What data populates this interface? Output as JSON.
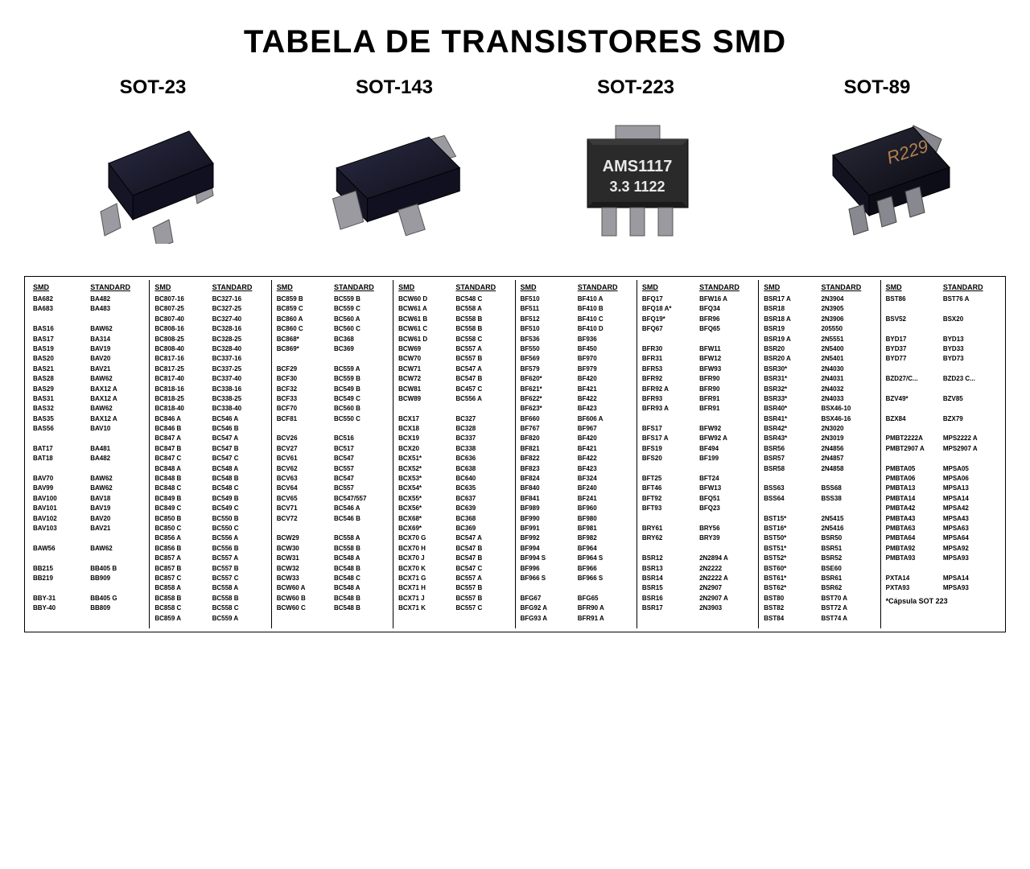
{
  "title": "TABELA DE TRANSISTORES SMD",
  "packages": [
    {
      "label": "SOT-23"
    },
    {
      "label": "SOT-143"
    },
    {
      "label": "SOT-223"
    },
    {
      "label": "SOT-89"
    }
  ],
  "table": {
    "header_left": "SMD",
    "header_right": "STANDARD",
    "columns": [
      [
        [
          "BA682",
          "BA482"
        ],
        [
          "BA683",
          "BA483"
        ],
        [
          "",
          ""
        ],
        [
          "BAS16",
          "BAW62"
        ],
        [
          "BAS17",
          "BA314"
        ],
        [
          "BAS19",
          "BAV19"
        ],
        [
          "BAS20",
          "BAV20"
        ],
        [
          "BAS21",
          "BAV21"
        ],
        [
          "BAS28",
          "BAW62"
        ],
        [
          "BAS29",
          "BAX12 A"
        ],
        [
          "BAS31",
          "BAX12 A"
        ],
        [
          "BAS32",
          "BAW62"
        ],
        [
          "BAS35",
          "BAX12 A"
        ],
        [
          "BAS56",
          "BAV10"
        ],
        [
          "",
          ""
        ],
        [
          "BAT17",
          "BA481"
        ],
        [
          "BAT18",
          "BA482"
        ],
        [
          "",
          ""
        ],
        [
          "BAV70",
          "BAW62"
        ],
        [
          "BAV99",
          "BAW62"
        ],
        [
          "BAV100",
          "BAV18"
        ],
        [
          "BAV101",
          "BAV19"
        ],
        [
          "BAV102",
          "BAV20"
        ],
        [
          "BAV103",
          "BAV21"
        ],
        [
          "",
          ""
        ],
        [
          "BAW56",
          "BAW62"
        ],
        [
          "",
          ""
        ],
        [
          "BB215",
          "BB405 B"
        ],
        [
          "BB219",
          "BB909"
        ],
        [
          "",
          ""
        ],
        [
          "BBY-31",
          "BB405 G"
        ],
        [
          "BBY-40",
          "BB809"
        ]
      ],
      [
        [
          "BC807-16",
          "BC327-16"
        ],
        [
          "BC807-25",
          "BC327-25"
        ],
        [
          "BC807-40",
          "BC327-40"
        ],
        [
          "BC808-16",
          "BC328-16"
        ],
        [
          "BC808-25",
          "BC328-25"
        ],
        [
          "BC808-40",
          "BC328-40"
        ],
        [
          "BC817-16",
          "BC337-16"
        ],
        [
          "BC817-25",
          "BC337-25"
        ],
        [
          "BC817-40",
          "BC337-40"
        ],
        [
          "BC818-16",
          "BC338-16"
        ],
        [
          "BC818-25",
          "BC338-25"
        ],
        [
          "BC818-40",
          "BC338-40"
        ],
        [
          "BC846 A",
          "BC546 A"
        ],
        [
          "BC846 B",
          "BC546 B"
        ],
        [
          "BC847 A",
          "BC547 A"
        ],
        [
          "BC847 B",
          "BC547 B"
        ],
        [
          "BC847 C",
          "BC547 C"
        ],
        [
          "BC848 A",
          "BC548 A"
        ],
        [
          "BC848 B",
          "BC548 B"
        ],
        [
          "BC848 C",
          "BC548 C"
        ],
        [
          "BC849 B",
          "BC549 B"
        ],
        [
          "BC849 C",
          "BC549 C"
        ],
        [
          "BC850 B",
          "BC550 B"
        ],
        [
          "BC850 C",
          "BC550 C"
        ],
        [
          "BC856 A",
          "BC556 A"
        ],
        [
          "BC856 B",
          "BC556 B"
        ],
        [
          "BC857 A",
          "BC557 A"
        ],
        [
          "BC857 B",
          "BC557 B"
        ],
        [
          "BC857 C",
          "BC557 C"
        ],
        [
          "BC858 A",
          "BC558 A"
        ],
        [
          "BC858 B",
          "BC558 B"
        ],
        [
          "BC858 C",
          "BC558 C"
        ],
        [
          "BC859 A",
          "BC559 A"
        ]
      ],
      [
        [
          "BC859 B",
          "BC559 B"
        ],
        [
          "BC859 C",
          "BC559 C"
        ],
        [
          "BC860 A",
          "BC560 A"
        ],
        [
          "BC860 C",
          "BC560 C"
        ],
        [
          "BC868*",
          "BC368"
        ],
        [
          "BC869*",
          "BC369"
        ],
        [
          "",
          ""
        ],
        [
          "BCF29",
          "BC559 A"
        ],
        [
          "BCF30",
          "BC559 B"
        ],
        [
          "BCF32",
          "BC549 B"
        ],
        [
          "BCF33",
          "BC549 C"
        ],
        [
          "BCF70",
          "BC560 B"
        ],
        [
          "BCF81",
          "BC550 C"
        ],
        [
          "",
          ""
        ],
        [
          "BCV26",
          "BC516"
        ],
        [
          "BCV27",
          "BC517"
        ],
        [
          "BCV61",
          "BC547"
        ],
        [
          "BCV62",
          "BC557"
        ],
        [
          "BCV63",
          "BC547"
        ],
        [
          "BCV64",
          "BC557"
        ],
        [
          "BCV65",
          "BC547/557"
        ],
        [
          "BCV71",
          "BC546 A"
        ],
        [
          "BCV72",
          "BC546 B"
        ],
        [
          "",
          ""
        ],
        [
          "BCW29",
          "BC558 A"
        ],
        [
          "BCW30",
          "BC558 B"
        ],
        [
          "BCW31",
          "BC548 A"
        ],
        [
          "BCW32",
          "BC548 B"
        ],
        [
          "BCW33",
          "BC548 C"
        ],
        [
          "BCW60 A",
          "BC548 A"
        ],
        [
          "BCW60 B",
          "BC548 B"
        ],
        [
          "BCW60 C",
          "BC548 B"
        ]
      ],
      [
        [
          "BCW60 D",
          "BC548 C"
        ],
        [
          "BCW61 A",
          "BC558 A"
        ],
        [
          "BCW61 B",
          "BC558 B"
        ],
        [
          "BCW61 C",
          "BC558 B"
        ],
        [
          "BCW61 D",
          "BC558 C"
        ],
        [
          "BCW69",
          "BC557 A"
        ],
        [
          "BCW70",
          "BC557 B"
        ],
        [
          "BCW71",
          "BC547 A"
        ],
        [
          "BCW72",
          "BC547 B"
        ],
        [
          "BCW81",
          "BC457 C"
        ],
        [
          "BCW89",
          "BC556 A"
        ],
        [
          "",
          ""
        ],
        [
          "BCX17",
          "BC327"
        ],
        [
          "BCX18",
          "BC328"
        ],
        [
          "BCX19",
          "BC337"
        ],
        [
          "BCX20",
          "BC338"
        ],
        [
          "BCX51*",
          "BC636"
        ],
        [
          "BCX52*",
          "BC638"
        ],
        [
          "BCX53*",
          "BC640"
        ],
        [
          "BCX54*",
          "BC635"
        ],
        [
          "BCX55*",
          "BC637"
        ],
        [
          "BCX56*",
          "BC639"
        ],
        [
          "BCX68*",
          "BC368"
        ],
        [
          "BCX69*",
          "BC369"
        ],
        [
          "BCX70 G",
          "BC547 A"
        ],
        [
          "BCX70 H",
          "BC547 B"
        ],
        [
          "BCX70 J",
          "BC547 B"
        ],
        [
          "BCX70 K",
          "BC547 C"
        ],
        [
          "BCX71 G",
          "BC557 A"
        ],
        [
          "BCX71 H",
          "BC557 B"
        ],
        [
          "BCX71 J",
          "BC557 B"
        ],
        [
          "BCX71 K",
          "BC557 C"
        ]
      ],
      [
        [
          "BF510",
          "BF410 A"
        ],
        [
          "BF511",
          "BF410 B"
        ],
        [
          "BF512",
          "BF410 C"
        ],
        [
          "BF510",
          "BF410 D"
        ],
        [
          "BF536",
          "BF936"
        ],
        [
          "BF550",
          "BF450"
        ],
        [
          "BF569",
          "BF970"
        ],
        [
          "BF579",
          "BF979"
        ],
        [
          "BF620*",
          "BF420"
        ],
        [
          "BF621*",
          "BF421"
        ],
        [
          "BF622*",
          "BF422"
        ],
        [
          "BF623*",
          "BF423"
        ],
        [
          "BF660",
          "BF606 A"
        ],
        [
          "BF767",
          "BF967"
        ],
        [
          "BF820",
          "BF420"
        ],
        [
          "BF821",
          "BF421"
        ],
        [
          "BF822",
          "BF422"
        ],
        [
          "BF823",
          "BF423"
        ],
        [
          "BF824",
          "BF324"
        ],
        [
          "BF840",
          "BF240"
        ],
        [
          "BF841",
          "BF241"
        ],
        [
          "BF989",
          "BF960"
        ],
        [
          "BF990",
          "BF980"
        ],
        [
          "BF991",
          "BF981"
        ],
        [
          "BF992",
          "BF982"
        ],
        [
          "BF994",
          "BF964"
        ],
        [
          "BF994 S",
          "BF964 S"
        ],
        [
          "BF996",
          "BF966"
        ],
        [
          "BF966 S",
          "BF966 S"
        ],
        [
          "",
          ""
        ],
        [
          "BFG67",
          "BFG65"
        ],
        [
          "BFG92 A",
          "BFR90 A"
        ],
        [
          "BFG93 A",
          "BFR91 A"
        ]
      ],
      [
        [
          "BFQ17",
          "BFW16 A"
        ],
        [
          "BFQ18 A*",
          "BFQ34"
        ],
        [
          "BFQ19*",
          "BFR96"
        ],
        [
          "BFQ67",
          "BFQ65"
        ],
        [
          "",
          ""
        ],
        [
          "BFR30",
          "BFW11"
        ],
        [
          "BFR31",
          "BFW12"
        ],
        [
          "BFR53",
          "BFW93"
        ],
        [
          "BFR92",
          "BFR90"
        ],
        [
          "BFR92 A",
          "BFR90"
        ],
        [
          "BFR93",
          "BFR91"
        ],
        [
          "BFR93 A",
          "BFR91"
        ],
        [
          "",
          ""
        ],
        [
          "BFS17",
          "BFW92"
        ],
        [
          "BFS17 A",
          "BFW92 A"
        ],
        [
          "BFS19",
          "BF494"
        ],
        [
          "BFS20",
          "BF199"
        ],
        [
          "",
          ""
        ],
        [
          "BFT25",
          "BFT24"
        ],
        [
          "BFT46",
          "BFW13"
        ],
        [
          "BFT92",
          "BFQ51"
        ],
        [
          "BFT93",
          "BFQ23"
        ],
        [
          "",
          ""
        ],
        [
          "BRY61",
          "BRY56"
        ],
        [
          "BRY62",
          "BRY39"
        ],
        [
          "",
          ""
        ],
        [
          "BSR12",
          "2N2894 A"
        ],
        [
          "BSR13",
          "2N2222"
        ],
        [
          "BSR14",
          "2N2222 A"
        ],
        [
          "BSR15",
          "2N2907"
        ],
        [
          "BSR16",
          "2N2907 A"
        ],
        [
          "BSR17",
          "2N3903"
        ]
      ],
      [
        [
          "BSR17 A",
          "2N3904"
        ],
        [
          "BSR18",
          "2N3905"
        ],
        [
          "BSR18 A",
          "2N3906"
        ],
        [
          "BSR19",
          "205550"
        ],
        [
          "BSR19 A",
          "2N5551"
        ],
        [
          "BSR20",
          "2N5400"
        ],
        [
          "BSR20 A",
          "2N5401"
        ],
        [
          "BSR30*",
          "2N4030"
        ],
        [
          "BSR31*",
          "2N4031"
        ],
        [
          "BSR32*",
          "2N4032"
        ],
        [
          "BSR33*",
          "2N4033"
        ],
        [
          "BSR40*",
          "BSX46-10"
        ],
        [
          "BSR41*",
          "BSX46-16"
        ],
        [
          "BSR42*",
          "2N3020"
        ],
        [
          "BSR43*",
          "2N3019"
        ],
        [
          "BSR56",
          "2N4856"
        ],
        [
          "BSR57",
          "2N4857"
        ],
        [
          "BSR58",
          "2N4858"
        ],
        [
          "",
          ""
        ],
        [
          "BSS63",
          "BSS68"
        ],
        [
          "BSS64",
          "BSS38"
        ],
        [
          "",
          ""
        ],
        [
          "BST15*",
          "2N5415"
        ],
        [
          "BST16*",
          "2N5416"
        ],
        [
          "BST50*",
          "BSR50"
        ],
        [
          "BST51*",
          "BSR51"
        ],
        [
          "BST52*",
          "BSR52"
        ],
        [
          "BST60*",
          "BSE60"
        ],
        [
          "BST61*",
          "BSR61"
        ],
        [
          "BST62*",
          "BSR62"
        ],
        [
          "BST80",
          "BST70 A"
        ],
        [
          "BST82",
          "BST72 A"
        ],
        [
          "BST84",
          "BST74 A"
        ]
      ],
      [
        [
          "BST86",
          "BST76 A"
        ],
        [
          "",
          ""
        ],
        [
          "BSV52",
          "BSX20"
        ],
        [
          "",
          ""
        ],
        [
          "BYD17",
          "BYD13"
        ],
        [
          "BYD37",
          "BYD33"
        ],
        [
          "BYD77",
          "BYD73"
        ],
        [
          "",
          ""
        ],
        [
          "BZD27/C...",
          "BZD23 C..."
        ],
        [
          "",
          ""
        ],
        [
          "BZV49*",
          "BZV85"
        ],
        [
          "",
          ""
        ],
        [
          "BZX84",
          "BZX79"
        ],
        [
          "",
          ""
        ],
        [
          "PMBT2222A",
          "MPS2222 A"
        ],
        [
          "PMBT2907 A",
          "MPS2907 A"
        ],
        [
          "",
          ""
        ],
        [
          "PMBTA05",
          "MPSA05"
        ],
        [
          "PMBTA06",
          "MPSA06"
        ],
        [
          "PMBTA13",
          "MPSA13"
        ],
        [
          "PMBTA14",
          "MPSA14"
        ],
        [
          "PMBTA42",
          "MPSA42"
        ],
        [
          "PMBTA43",
          "MPSA43"
        ],
        [
          "PMBTA63",
          "MPSA63"
        ],
        [
          "PMBTA64",
          "MPSA64"
        ],
        [
          "PMBTA92",
          "MPSA92"
        ],
        [
          "PMBTA93",
          "MPSA93"
        ],
        [
          "",
          ""
        ],
        [
          "PXTA14",
          "MPSA14"
        ],
        [
          "PXTA93",
          "MPSA93"
        ]
      ]
    ],
    "footnote": "*Cápsula SOT 223"
  },
  "colors": {
    "body_dark": "#1a1a2a",
    "body_dark2": "#2a2a3a",
    "lead": "#9a9aa0",
    "lead_dark": "#6a6a70",
    "pcb_text": "#e8e8e8"
  }
}
